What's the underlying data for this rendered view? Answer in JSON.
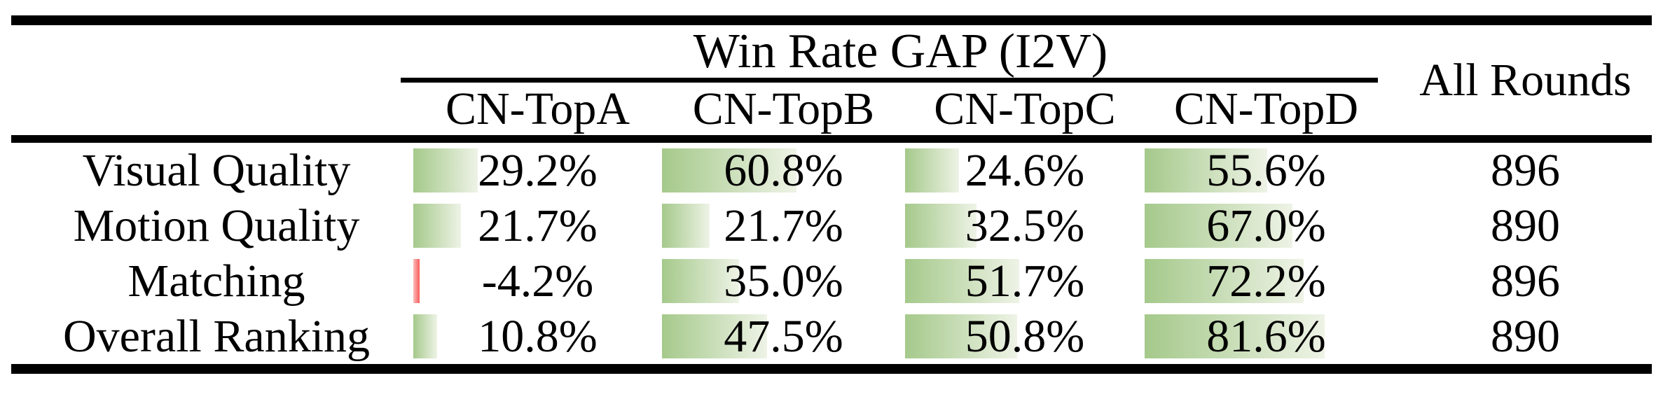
{
  "table": {
    "group_header": "Win Rate GAP (I2V)",
    "all_rounds_header": "All Rounds",
    "columns": [
      "CN-TopA",
      "CN-TopB",
      "CN-TopC",
      "CN-TopD"
    ],
    "rows": [
      {
        "label": "Visual Quality",
        "values": [
          "29.2%",
          "60.8%",
          "24.6%",
          "55.6%"
        ],
        "all_rounds": "896"
      },
      {
        "label": "Motion Quality",
        "values": [
          "21.7%",
          "21.7%",
          "32.5%",
          "67.0%"
        ],
        "all_rounds": "890"
      },
      {
        "label": "Matching",
        "values": [
          "-4.2%",
          "35.0%",
          "51.7%",
          "72.2%"
        ],
        "all_rounds": "896"
      },
      {
        "label": "Overall Ranking",
        "values": [
          "10.8%",
          "47.5%",
          "50.8%",
          "81.6%"
        ],
        "all_rounds": "890"
      }
    ],
    "colors": {
      "bar_positive": "#a5c98b",
      "bar_positive_fade": "#eef3e6",
      "bar_negative": "#f85b5b",
      "bar_negative_fade": "#fcbcbc",
      "rule": "#000000"
    }
  },
  "chart_data": {
    "type": "table",
    "title": "Win Rate GAP (I2V)",
    "categories": [
      "Visual Quality",
      "Motion Quality",
      "Matching",
      "Overall Ranking"
    ],
    "series": [
      {
        "name": "CN-TopA",
        "values": [
          29.2,
          21.7,
          -4.2,
          10.8
        ]
      },
      {
        "name": "CN-TopB",
        "values": [
          60.8,
          21.7,
          35.0,
          47.5
        ]
      },
      {
        "name": "CN-TopC",
        "values": [
          24.6,
          32.5,
          51.7,
          50.8
        ]
      },
      {
        "name": "CN-TopD",
        "values": [
          55.6,
          67.0,
          72.2,
          81.6
        ]
      }
    ],
    "extra_column": {
      "name": "All Rounds",
      "values": [
        896,
        890,
        896,
        890
      ]
    },
    "value_unit": "%",
    "bar_scale": [
      0,
      100
    ],
    "notes": "green data bars behind percentages, red thin bar for negative value"
  }
}
